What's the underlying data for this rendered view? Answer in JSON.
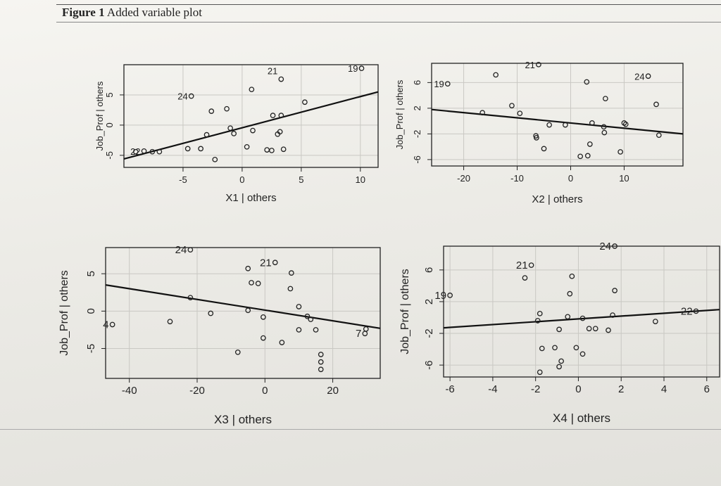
{
  "figure": {
    "label": "Figure 1",
    "title": "Added variable plot"
  },
  "chart_data": [
    {
      "type": "scatter",
      "xlabel": "X1 | others",
      "ylabel": "Job_Prof | others",
      "xlim": [
        -10,
        11.5
      ],
      "ylim": [
        -7,
        10
      ],
      "xticks": [
        "-5",
        "0",
        "5",
        "10"
      ],
      "yticks": [
        "-5",
        "0",
        "5"
      ],
      "grid": true,
      "fit_line": {
        "x": [
          -10,
          11.5
        ],
        "y": [
          -5.6,
          5.5
        ]
      },
      "points": [
        {
          "x": -9.0,
          "y": -4.4
        },
        {
          "x": -8.3,
          "y": -4.3
        },
        {
          "x": -7.6,
          "y": -4.4
        },
        {
          "x": -7.0,
          "y": -4.4
        },
        {
          "x": -4.6,
          "y": -3.9
        },
        {
          "x": -3.5,
          "y": -3.9
        },
        {
          "x": -4.3,
          "y": 4.8
        },
        {
          "x": -2.6,
          "y": 2.3
        },
        {
          "x": -1.3,
          "y": 2.7
        },
        {
          "x": -3.0,
          "y": -1.6
        },
        {
          "x": -2.3,
          "y": -5.7
        },
        {
          "x": -1.0,
          "y": -0.5
        },
        {
          "x": -0.7,
          "y": -1.4
        },
        {
          "x": 0.9,
          "y": -0.9
        },
        {
          "x": 0.4,
          "y": -3.6
        },
        {
          "x": 0.8,
          "y": 5.9
        },
        {
          "x": 2.1,
          "y": -4.1
        },
        {
          "x": 2.5,
          "y": -4.2
        },
        {
          "x": 3.5,
          "y": -4.0
        },
        {
          "x": 2.6,
          "y": 1.6
        },
        {
          "x": 3.3,
          "y": 1.6
        },
        {
          "x": 3.0,
          "y": -1.5
        },
        {
          "x": 3.2,
          "y": -1.1
        },
        {
          "x": 5.3,
          "y": 3.8
        },
        {
          "x": 3.3,
          "y": 7.6
        },
        {
          "x": 10.1,
          "y": 9.4
        }
      ],
      "point_labels": [
        {
          "text": "24",
          "x": -4.3,
          "y": 4.8
        },
        {
          "text": "22",
          "x": -8.3,
          "y": -4.3
        },
        {
          "text": "21",
          "x": 3.3,
          "y": 9.0
        },
        {
          "text": "19",
          "x": 10.1,
          "y": 9.4
        }
      ]
    },
    {
      "type": "scatter",
      "xlabel": "X2 | others",
      "ylabel": "Job_Prof | others",
      "xlim": [
        -26,
        21
      ],
      "ylim": [
        -7,
        9
      ],
      "xticks": [
        "-20",
        "-10",
        "0",
        "10"
      ],
      "yticks": [
        "-6",
        "-2",
        "2",
        "6"
      ],
      "grid": true,
      "fit_line": {
        "x": [
          -26,
          21
        ],
        "y": [
          1.8,
          -2.0
        ]
      },
      "points": [
        {
          "x": -23.0,
          "y": 5.8
        },
        {
          "x": -14.0,
          "y": 7.2
        },
        {
          "x": -6.0,
          "y": 8.8
        },
        {
          "x": 3.0,
          "y": 6.1
        },
        {
          "x": 6.5,
          "y": 3.5
        },
        {
          "x": 14.5,
          "y": 7.0
        },
        {
          "x": 16.0,
          "y": 2.6
        },
        {
          "x": -16.5,
          "y": 1.3
        },
        {
          "x": -11.0,
          "y": 2.4
        },
        {
          "x": -9.5,
          "y": 1.2
        },
        {
          "x": -6.5,
          "y": -2.3
        },
        {
          "x": -6.4,
          "y": -2.6
        },
        {
          "x": -5.0,
          "y": -4.3
        },
        {
          "x": -4.0,
          "y": -0.6
        },
        {
          "x": -1.0,
          "y": -0.6
        },
        {
          "x": 4.0,
          "y": -0.3
        },
        {
          "x": 6.2,
          "y": -0.9
        },
        {
          "x": 6.3,
          "y": -1.8
        },
        {
          "x": 3.6,
          "y": -3.6
        },
        {
          "x": 1.8,
          "y": -5.5
        },
        {
          "x": 3.2,
          "y": -5.4
        },
        {
          "x": 9.3,
          "y": -4.8
        },
        {
          "x": 10.0,
          "y": -0.3
        },
        {
          "x": 10.3,
          "y": -0.5
        },
        {
          "x": 16.5,
          "y": -2.2
        }
      ],
      "point_labels": [
        {
          "text": "19",
          "x": -23.0,
          "y": 5.8
        },
        {
          "text": "21",
          "x": -6.0,
          "y": 8.8
        },
        {
          "text": "24",
          "x": 14.5,
          "y": 7.0
        }
      ]
    },
    {
      "type": "scatter",
      "xlabel": "X3 | others",
      "ylabel": "Job_Prof | others",
      "xlim": [
        -47,
        34
      ],
      "ylim": [
        -9,
        8.5
      ],
      "xticks": [
        "-40",
        "-20",
        "0",
        "20"
      ],
      "yticks": [
        "-5",
        "0",
        "5"
      ],
      "grid": true,
      "fit_line": {
        "x": [
          -47,
          34
        ],
        "y": [
          3.5,
          -2.3
        ]
      },
      "points": [
        {
          "x": -22.0,
          "y": 8.2
        },
        {
          "x": -5.0,
          "y": 5.7
        },
        {
          "x": 3.0,
          "y": 6.5
        },
        {
          "x": 7.8,
          "y": 5.1
        },
        {
          "x": -4.0,
          "y": 3.8
        },
        {
          "x": -2.0,
          "y": 3.7
        },
        {
          "x": 7.5,
          "y": 3.0
        },
        {
          "x": -22.0,
          "y": 1.8
        },
        {
          "x": -16.0,
          "y": -0.3
        },
        {
          "x": -5.0,
          "y": 0.1
        },
        {
          "x": 10.0,
          "y": 0.6
        },
        {
          "x": -0.5,
          "y": -0.8
        },
        {
          "x": 12.5,
          "y": -0.7
        },
        {
          "x": 13.5,
          "y": -1.1
        },
        {
          "x": -45.0,
          "y": -1.8
        },
        {
          "x": -28.0,
          "y": -1.4
        },
        {
          "x": 10.0,
          "y": -2.5
        },
        {
          "x": 15.0,
          "y": -2.5
        },
        {
          "x": 29.8,
          "y": -2.4
        },
        {
          "x": 29.5,
          "y": -3.0
        },
        {
          "x": -0.5,
          "y": -3.6
        },
        {
          "x": 5.0,
          "y": -4.2
        },
        {
          "x": -8.0,
          "y": -5.5
        },
        {
          "x": 16.5,
          "y": -5.8
        },
        {
          "x": 16.5,
          "y": -6.8
        },
        {
          "x": 16.5,
          "y": -7.8
        }
      ],
      "point_labels": [
        {
          "text": "24",
          "x": -22.0,
          "y": 8.2
        },
        {
          "text": "21",
          "x": 3.0,
          "y": 6.5
        },
        {
          "text": "4",
          "x": -45.0,
          "y": -1.8
        },
        {
          "text": "7",
          "x": 29.5,
          "y": -3.0
        }
      ]
    },
    {
      "type": "scatter",
      "xlabel": "X4 | others",
      "ylabel": "Job_Prof | others",
      "xlim": [
        -6.3,
        6.6
      ],
      "ylim": [
        -7.5,
        9
      ],
      "xticks": [
        "-6",
        "-4",
        "-2",
        "0",
        "2",
        "4",
        "6"
      ],
      "yticks": [
        "-6",
        "-2",
        "2",
        "6"
      ],
      "grid": true,
      "fit_line": {
        "x": [
          -6.3,
          6.6
        ],
        "y": [
          -1.3,
          1.0
        ]
      },
      "points": [
        {
          "x": -6.0,
          "y": 2.8
        },
        {
          "x": -2.2,
          "y": 6.6
        },
        {
          "x": -2.5,
          "y": 5.0
        },
        {
          "x": -0.3,
          "y": 5.2
        },
        {
          "x": -0.4,
          "y": 3.0
        },
        {
          "x": 1.7,
          "y": 3.4
        },
        {
          "x": 1.7,
          "y": 9.0
        },
        {
          "x": 5.5,
          "y": 0.8
        },
        {
          "x": -1.8,
          "y": 0.5
        },
        {
          "x": -1.9,
          "y": -0.4
        },
        {
          "x": -0.5,
          "y": 0.1
        },
        {
          "x": 0.2,
          "y": -0.1
        },
        {
          "x": 1.6,
          "y": 0.3
        },
        {
          "x": 3.6,
          "y": -0.5
        },
        {
          "x": -0.9,
          "y": -1.5
        },
        {
          "x": 0.5,
          "y": -1.4
        },
        {
          "x": 0.8,
          "y": -1.4
        },
        {
          "x": 1.4,
          "y": -1.6
        },
        {
          "x": -1.7,
          "y": -3.9
        },
        {
          "x": -1.1,
          "y": -3.8
        },
        {
          "x": -0.1,
          "y": -3.8
        },
        {
          "x": 0.2,
          "y": -4.6
        },
        {
          "x": -0.8,
          "y": -5.5
        },
        {
          "x": -0.9,
          "y": -6.2
        },
        {
          "x": -1.8,
          "y": -6.9
        }
      ],
      "point_labels": [
        {
          "text": "21",
          "x": -2.2,
          "y": 6.6
        },
        {
          "text": "19",
          "x": -6.0,
          "y": 2.8
        },
        {
          "text": "24",
          "x": 1.7,
          "y": 9.0
        },
        {
          "text": "22",
          "x": 5.5,
          "y": 0.8
        }
      ]
    }
  ]
}
